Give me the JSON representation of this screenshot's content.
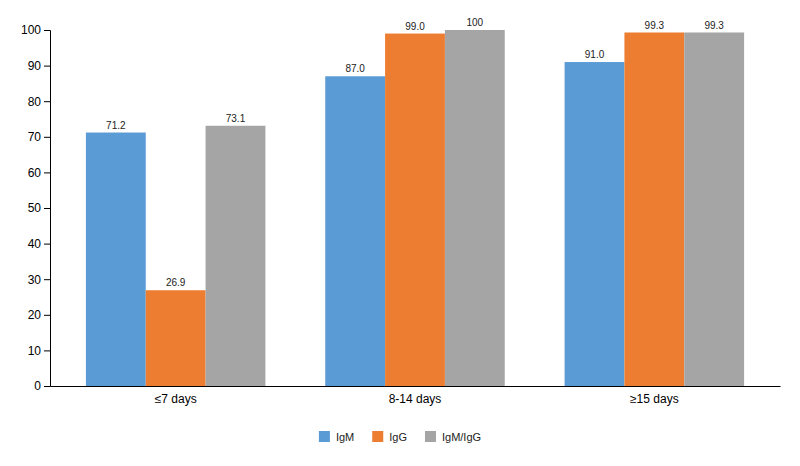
{
  "chart_data": {
    "type": "bar",
    "categories": [
      "≤7 days",
      "8-14 days",
      "≥15 days"
    ],
    "series": [
      {
        "name": "IgM",
        "color": "#5B9BD5",
        "values": [
          71.2,
          87.0,
          91.0
        ],
        "value_labels": [
          "71.2",
          "87.0",
          "91.0"
        ]
      },
      {
        "name": "IgG",
        "color": "#ED7D31",
        "values": [
          26.9,
          99.0,
          99.3
        ],
        "value_labels": [
          "26.9",
          "99.0",
          "99.3"
        ]
      },
      {
        "name": "IgM/IgG",
        "color": "#A5A5A5",
        "values": [
          73.1,
          100.0,
          99.3
        ],
        "value_labels": [
          "73.1",
          "100",
          "99.3"
        ]
      }
    ],
    "ylim": [
      0,
      100
    ],
    "yticks": [
      0,
      10,
      20,
      30,
      40,
      50,
      60,
      70,
      80,
      90,
      100
    ],
    "grid": false,
    "legend": "bottom",
    "data_labels": true
  }
}
